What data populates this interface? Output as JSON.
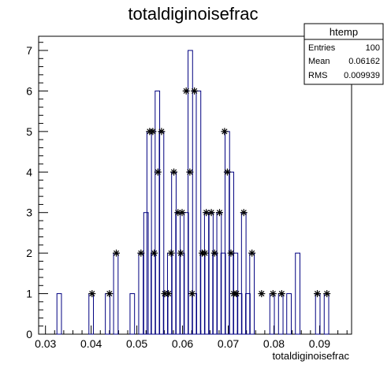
{
  "chart_data": {
    "type": "bar",
    "title": "totaldiginoisefrac",
    "xlabel": "totaldiginoisefrac",
    "ylabel": "",
    "xlim": [
      0.0285,
      0.097
    ],
    "ylim": [
      0,
      7.35
    ],
    "bin_width": 0.00099,
    "x_ticks": [
      "0.03",
      "0.04",
      "0.05",
      "0.06",
      "0.07",
      "0.08",
      "0.09"
    ],
    "y_ticks": [
      "0",
      "1",
      "2",
      "3",
      "4",
      "5",
      "6",
      "7"
    ],
    "bins": [
      {
        "x": 0.033,
        "count": 1
      },
      {
        "x": 0.04,
        "count": 1
      },
      {
        "x": 0.0436,
        "count": 1
      },
      {
        "x": 0.0454,
        "count": 2
      },
      {
        "x": 0.049,
        "count": 1
      },
      {
        "x": 0.0509,
        "count": 2
      },
      {
        "x": 0.052,
        "count": 3
      },
      {
        "x": 0.0527,
        "count": 5
      },
      {
        "x": 0.0536,
        "count": 2
      },
      {
        "x": 0.0545,
        "count": 6
      },
      {
        "x": 0.0554,
        "count": 5
      },
      {
        "x": 0.0563,
        "count": 1
      },
      {
        "x": 0.0572,
        "count": 2
      },
      {
        "x": 0.0581,
        "count": 4
      },
      {
        "x": 0.059,
        "count": 3
      },
      {
        "x": 0.0599,
        "count": 2
      },
      {
        "x": 0.0608,
        "count": 3
      },
      {
        "x": 0.0617,
        "count": 7
      },
      {
        "x": 0.0626,
        "count": 1
      },
      {
        "x": 0.0635,
        "count": 6
      },
      {
        "x": 0.0644,
        "count": 2
      },
      {
        "x": 0.0653,
        "count": 3
      },
      {
        "x": 0.0662,
        "count": 3
      },
      {
        "x": 0.0671,
        "count": 2
      },
      {
        "x": 0.068,
        "count": 3
      },
      {
        "x": 0.0689,
        "count": 2
      },
      {
        "x": 0.0698,
        "count": 5
      },
      {
        "x": 0.0707,
        "count": 4
      },
      {
        "x": 0.0716,
        "count": 2
      },
      {
        "x": 0.0725,
        "count": 1
      },
      {
        "x": 0.0734,
        "count": 3
      },
      {
        "x": 0.0743,
        "count": 1
      },
      {
        "x": 0.0752,
        "count": 2
      },
      {
        "x": 0.0796,
        "count": 1
      },
      {
        "x": 0.0815,
        "count": 1
      },
      {
        "x": 0.0833,
        "count": 1
      },
      {
        "x": 0.0852,
        "count": 2
      },
      {
        "x": 0.0896,
        "count": 1
      },
      {
        "x": 0.0915,
        "count": 1
      }
    ],
    "markers": [
      {
        "x": 0.0402,
        "y": 1
      },
      {
        "x": 0.044,
        "y": 1
      },
      {
        "x": 0.0455,
        "y": 2
      },
      {
        "x": 0.0509,
        "y": 2
      },
      {
        "x": 0.0528,
        "y": 5
      },
      {
        "x": 0.0535,
        "y": 5
      },
      {
        "x": 0.0538,
        "y": 2
      },
      {
        "x": 0.0546,
        "y": 4
      },
      {
        "x": 0.0554,
        "y": 5
      },
      {
        "x": 0.0561,
        "y": 1
      },
      {
        "x": 0.0569,
        "y": 1
      },
      {
        "x": 0.0575,
        "y": 2
      },
      {
        "x": 0.0581,
        "y": 4
      },
      {
        "x": 0.059,
        "y": 3
      },
      {
        "x": 0.0596,
        "y": 2
      },
      {
        "x": 0.0599,
        "y": 3
      },
      {
        "x": 0.0608,
        "y": 6
      },
      {
        "x": 0.0616,
        "y": 4
      },
      {
        "x": 0.0621,
        "y": 1
      },
      {
        "x": 0.0626,
        "y": 6
      },
      {
        "x": 0.0643,
        "y": 2
      },
      {
        "x": 0.0649,
        "y": 2
      },
      {
        "x": 0.0652,
        "y": 3
      },
      {
        "x": 0.0663,
        "y": 3
      },
      {
        "x": 0.067,
        "y": 2
      },
      {
        "x": 0.0681,
        "y": 3
      },
      {
        "x": 0.0692,
        "y": 5
      },
      {
        "x": 0.0698,
        "y": 4
      },
      {
        "x": 0.0706,
        "y": 2
      },
      {
        "x": 0.0712,
        "y": 1
      },
      {
        "x": 0.0718,
        "y": 1
      },
      {
        "x": 0.0734,
        "y": 3
      },
      {
        "x": 0.0752,
        "y": 2
      },
      {
        "x": 0.0773,
        "y": 1
      },
      {
        "x": 0.0798,
        "y": 1
      },
      {
        "x": 0.0817,
        "y": 1
      },
      {
        "x": 0.0895,
        "y": 1
      },
      {
        "x": 0.0916,
        "y": 1
      }
    ],
    "stats": {
      "name": "htemp",
      "rows": [
        {
          "label": "Entries",
          "value": "100"
        },
        {
          "label": "Mean",
          "value": "0.06162"
        },
        {
          "label": "RMS",
          "value": "0.009939"
        }
      ]
    },
    "hist_color": "#000080",
    "marker_color": "#000000"
  }
}
